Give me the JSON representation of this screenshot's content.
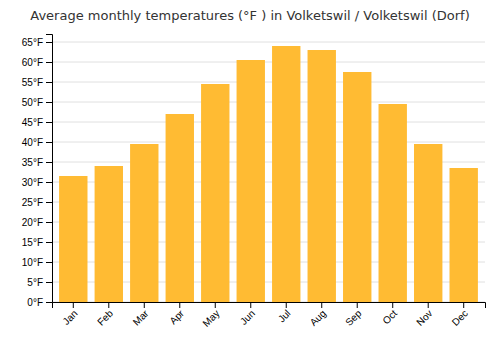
{
  "chart_data": {
    "type": "bar",
    "title": "Average monthly temperatures (°F ) in Volketswil / Volketswil (Dorf)",
    "categories": [
      "Jan",
      "Feb",
      "Mar",
      "Apr",
      "May",
      "Jun",
      "Jul",
      "Aug",
      "Sep",
      "Oct",
      "Nov",
      "Dec"
    ],
    "values": [
      31.5,
      34.0,
      39.5,
      47.0,
      54.5,
      60.5,
      64.0,
      63.0,
      57.5,
      49.5,
      39.5,
      33.5
    ],
    "color": "#FFBB33",
    "ylim": [
      0,
      67
    ],
    "yticks": [
      {
        "value": 0,
        "label": "0°F"
      },
      {
        "value": 5,
        "label": "5°F"
      },
      {
        "value": 10,
        "label": "10°F"
      },
      {
        "value": 15,
        "label": "15°F"
      },
      {
        "value": 20,
        "label": "20°F"
      },
      {
        "value": 25,
        "label": "25°F"
      },
      {
        "value": 30,
        "label": "30°F"
      },
      {
        "value": 35,
        "label": "35°F"
      },
      {
        "value": 40,
        "label": "40°F"
      },
      {
        "value": 45,
        "label": "45°F"
      },
      {
        "value": 50,
        "label": "50°F"
      },
      {
        "value": 55,
        "label": "55°F"
      },
      {
        "value": 60,
        "label": "60°F"
      },
      {
        "value": 65,
        "label": "65°F"
      }
    ],
    "grid": true
  }
}
